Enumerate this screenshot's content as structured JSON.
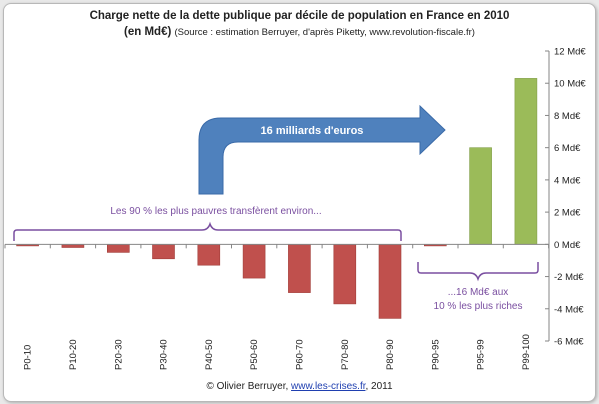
{
  "title": "Charge nette de la dette publique par décile de population en France en 2010",
  "subtitle_unit": "(en Md€)",
  "subtitle_source": "(Source : estimation Berruyer,  d'après Piketty, www.revolution-fiscale.fr)",
  "credit_prefix": "© Olivier Berruyer, ",
  "credit_link": "www.les-crises.fr",
  "credit_suffix": ", 2011",
  "colors": {
    "negative": "#c0504d",
    "positive": "#9bbb59",
    "arrow": "#4f81bd",
    "annotation": "#7a4fa0"
  },
  "annotations": {
    "arrow_label": "16 milliards d'euros",
    "left_brace_label": "Les 90 % les plus pauvres transfèrent environ...",
    "right_brace_line1": "...16 Md€ aux",
    "right_brace_line2": "10 % les plus riches"
  },
  "chart_data": {
    "type": "bar",
    "categories": [
      "P0-10",
      "P10-20",
      "P20-30",
      "P30-40",
      "P40-50",
      "P50-60",
      "P60-70",
      "P70-80",
      "P80-90",
      "P90-95",
      "P95-99",
      "P99-100"
    ],
    "values": [
      -0.1,
      -0.2,
      -0.5,
      -0.9,
      -1.3,
      -2.1,
      -3.0,
      -3.7,
      -4.6,
      -0.1,
      6.0,
      10.3
    ],
    "ylim": [
      -6,
      12
    ],
    "yticks": [
      -6,
      -4,
      -2,
      0,
      2,
      4,
      6,
      8,
      10,
      12
    ],
    "ytick_suffix": " Md€",
    "y_axis_side": "right",
    "grid": false
  }
}
